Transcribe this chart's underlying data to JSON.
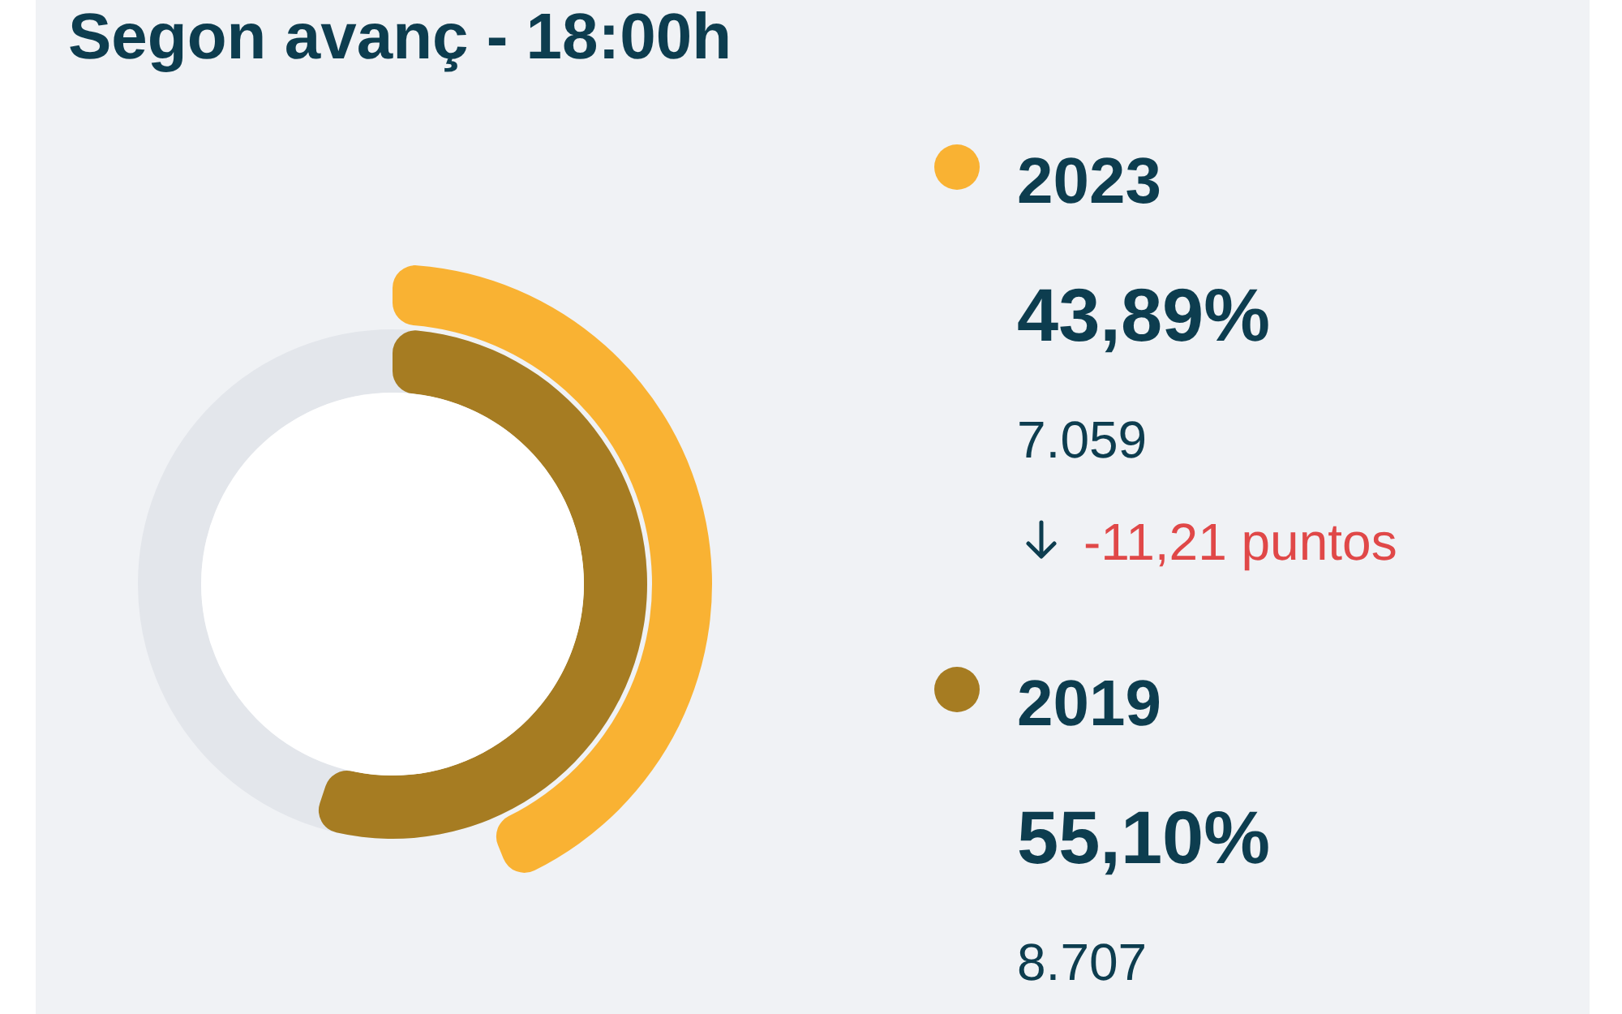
{
  "chart_data": {
    "type": "other",
    "title": "Segon avanç - 18:00h",
    "categories": [
      "2023",
      "2019"
    ],
    "values": [
      43.89,
      55.1
    ],
    "colors": [
      "#f9b233",
      "#a67c22"
    ],
    "value_labels": [
      "43,89%",
      "55,10%"
    ],
    "annotations": [
      "7.059",
      "-11,21 puntos",
      "8.707"
    ]
  }
}
